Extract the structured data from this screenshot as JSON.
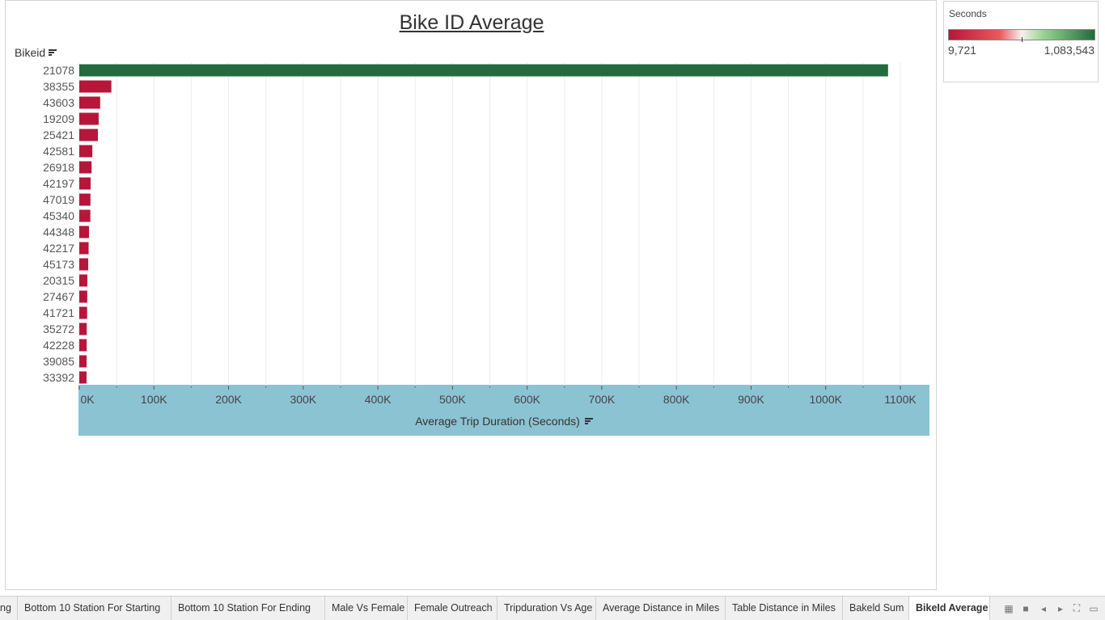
{
  "title": "Bike ID Average",
  "colors": {
    "low": "#b7163b",
    "high": "#226b3c",
    "axis_band": "#8cc3d3"
  },
  "legend": {
    "title": "Seconds",
    "min": "9,721",
    "max": "1,083,543"
  },
  "tabs": [
    {
      "label": "ng"
    },
    {
      "label": "Bottom 10 Station For Starting"
    },
    {
      "label": "Bottom 10 Station For Ending"
    },
    {
      "label": "Male Vs Female"
    },
    {
      "label": "Female Outreach"
    },
    {
      "label": "Tripduration Vs Age"
    },
    {
      "label": "Average Distance in Miles"
    },
    {
      "label": "Table Distance in Miles"
    },
    {
      "label": "Bakeld Sum"
    },
    {
      "label": "BikeId Average",
      "active": true
    }
  ],
  "chart_data": {
    "type": "bar",
    "orientation": "horizontal",
    "title": "Bike ID Average",
    "ylabel": "Bikeid",
    "xlabel": "Average Trip Duration (Seconds)",
    "xlim": [
      0,
      1100000
    ],
    "xticks": [
      "0K",
      "100K",
      "200K",
      "300K",
      "400K",
      "500K",
      "600K",
      "700K",
      "800K",
      "900K",
      "1000K",
      "1100K"
    ],
    "categories": [
      "21078",
      "38355",
      "43603",
      "19209",
      "25421",
      "42581",
      "26918",
      "42197",
      "47019",
      "45340",
      "44348",
      "42217",
      "45173",
      "20315",
      "27467",
      "41721",
      "35272",
      "42228",
      "39085",
      "33392"
    ],
    "values": [
      1083543,
      43000,
      28000,
      26000,
      25000,
      17500,
      16500,
      15200,
      15000,
      14800,
      13000,
      12500,
      12000,
      10800,
      10700,
      10500,
      10000,
      9900,
      9800,
      9721
    ],
    "grid": true
  }
}
